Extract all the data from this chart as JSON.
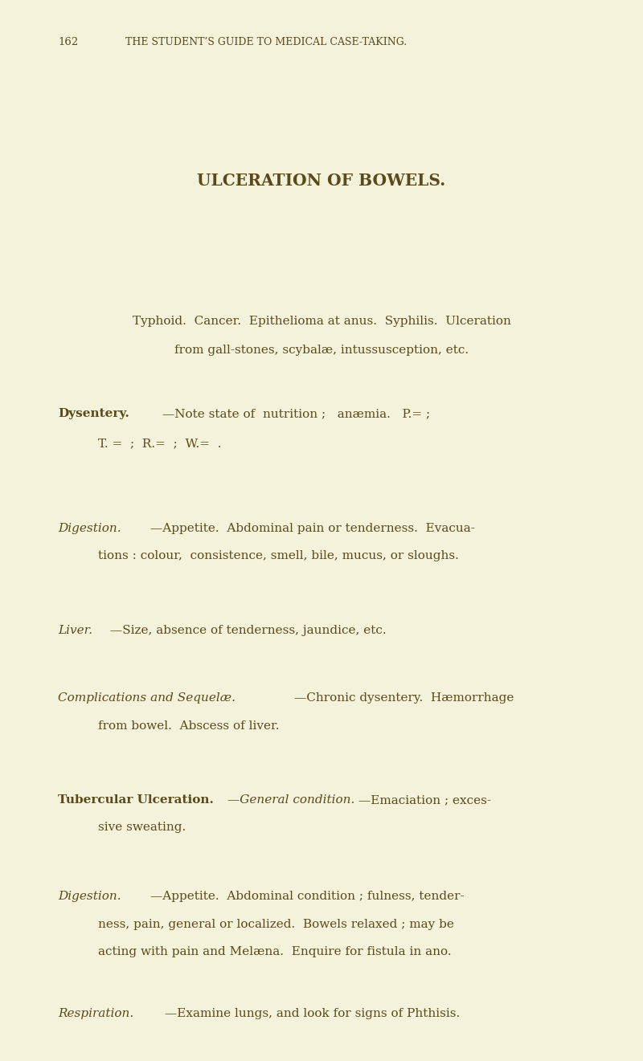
{
  "bg_color": "#f5f2dc",
  "text_color": "#5a4a1a",
  "page_width": 8.0,
  "page_height": 13.21,
  "header_num": "162",
  "header_title": "THE STUDENT’S GUIDE TO MEDICAL CASE-TAKING.",
  "main_title": "ULCERATION OF BOWELS.",
  "block0_line1": "Typhoid.  Cancer.  Epithelioma at anus.  Syphilis.  Ulceration",
  "block0_line2": "from gall-stones, scybalæ, intussusception, etc.",
  "dys_bold": "Dysentery.",
  "dys_rest1": "—Note state of  nutrition ;   anæmia.   P.= ;",
  "dys_line2": "T. =  ;  R.=  ;  W.=  .",
  "dig1_italic": "Digestion.",
  "dig1_rest1": "—Appetite.  Abdominal pain or tenderness.  Evacua-",
  "dig1_line2": "tions : colour,  consistence, smell, bile, mucus, or sloughs.",
  "liver_italic": "Liver.",
  "liver_rest1": "—Size, absence of tenderness, jaundice, etc.",
  "comp_italic": "Complications and Sequelæ.",
  "comp_rest1": "—Chronic dysentery.  Hæmorrhage",
  "comp_line2": "from bowel.  Abscess of liver.",
  "tub_bold": "Tubercular Ulceration.",
  "tub_italic": "—General condition.",
  "tub_rest1": "—Emaciation ; exces-",
  "tub_line2": "sive sweating.",
  "dig2_italic": "Digestion.",
  "dig2_rest1": "—Appetite.  Abdominal condition ; fulness, tender-",
  "dig2_line2": "ness, pain, general or localized.  Bowels relaxed ; may be",
  "dig2_line3": "acting with pain and Melæna.  Enquire for fistula in ano.",
  "resp_italic": "Respiration.",
  "resp_rest1": "—Examine lungs, and look for signs of Phthisis."
}
